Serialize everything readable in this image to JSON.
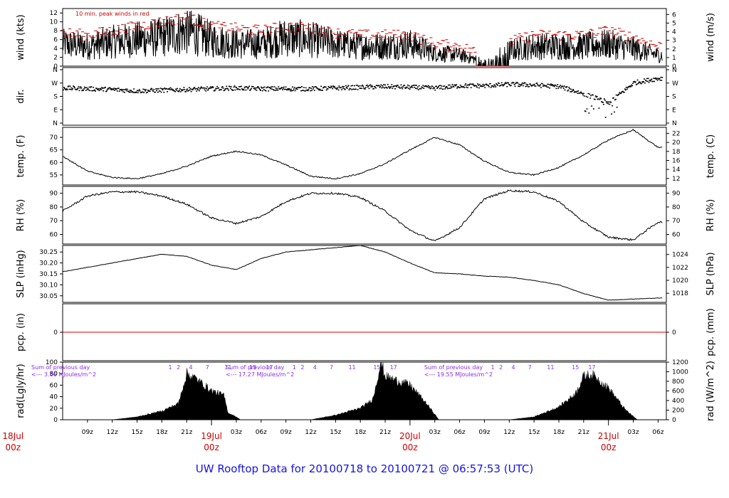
{
  "title": "UW Rooftop Data for 20100718  to  20100721 @ 06:57:53  (UTC)",
  "colors": {
    "data": "#000000",
    "peak": "#cc0000",
    "date": "#cc0000",
    "annotation": "#8a2be2",
    "title": "#1414e6",
    "zero_line": "#cc0000"
  },
  "time_axis": {
    "start": "2010-07-18 06:00Z",
    "end": "2010-07-21 07:00Z",
    "hour_ticks": [
      {
        "t": 3,
        "label": "09z"
      },
      {
        "t": 6,
        "label": "12z"
      },
      {
        "t": 9,
        "label": "15z"
      },
      {
        "t": 12,
        "label": "18z"
      },
      {
        "t": 15,
        "label": "21z"
      },
      {
        "t": 21,
        "label": "03z"
      },
      {
        "t": 24,
        "label": "06z"
      },
      {
        "t": 27,
        "label": "09z"
      },
      {
        "t": 30,
        "label": "12z"
      },
      {
        "t": 33,
        "label": "15z"
      },
      {
        "t": 36,
        "label": "18z"
      },
      {
        "t": 39,
        "label": "21z"
      },
      {
        "t": 45,
        "label": "03z"
      },
      {
        "t": 48,
        "label": "06z"
      },
      {
        "t": 51,
        "label": "09z"
      },
      {
        "t": 54,
        "label": "12z"
      },
      {
        "t": 57,
        "label": "15z"
      },
      {
        "t": 60,
        "label": "18z"
      },
      {
        "t": 63,
        "label": "21z"
      },
      {
        "t": 69,
        "label": "03z"
      },
      {
        "t": 72,
        "label": "06z"
      }
    ],
    "date_ticks": [
      {
        "t": -6,
        "date": "18Jul",
        "hour": "00z"
      },
      {
        "t": 18,
        "date": "19Jul",
        "hour": "00z"
      },
      {
        "t": 42,
        "date": "20Jul",
        "hour": "00z"
      },
      {
        "t": 66,
        "date": "21Jul",
        "hour": "00z"
      }
    ]
  },
  "chart_data": [
    {
      "type": "line",
      "id": "wind",
      "ylabel": "wind (kts)",
      "ylabel_right": "wind (m/s)",
      "ylim": [
        0,
        13
      ],
      "yticks": [
        0,
        2,
        4,
        6,
        8,
        10,
        12
      ],
      "yticks_right": [
        0,
        1,
        2,
        3,
        4,
        5,
        6
      ],
      "annotation": "10 min. peak winds in red",
      "x": [
        0,
        3,
        6,
        9,
        12,
        15,
        18,
        21,
        24,
        27,
        30,
        33,
        36,
        39,
        42,
        45,
        48,
        51,
        54,
        57,
        60,
        63,
        66,
        69,
        72
      ],
      "series": [
        {
          "values": [
            5.0,
            4.5,
            5.5,
            6.0,
            6.5,
            8.0,
            6.0,
            5.0,
            5.0,
            6.5,
            6.0,
            5.0,
            4.5,
            4.5,
            5.0,
            3.0,
            2.5,
            1.0,
            3.5,
            4.5,
            4.5,
            4.5,
            5.0,
            4.0,
            2.5
          ]
        },
        {
          "values": [
            7.5,
            7.0,
            8.0,
            9.0,
            10.0,
            11.0,
            9.0,
            8.5,
            8.0,
            9.0,
            8.5,
            7.5,
            7.0,
            7.0,
            7.0,
            5.0,
            4.5,
            2.5,
            5.5,
            7.0,
            7.0,
            7.0,
            8.0,
            6.5,
            4.5
          ]
        }
      ]
    },
    {
      "type": "scatter",
      "id": "direction",
      "ylabel": "dir.",
      "yticks": [
        "N",
        "E",
        "S",
        "W",
        "N"
      ],
      "yticks_right": [
        "N",
        "E",
        "S",
        "W",
        "N"
      ],
      "ylim": [
        0,
        360
      ],
      "x": [
        0,
        3,
        6,
        9,
        12,
        15,
        18,
        21,
        24,
        27,
        30,
        33,
        36,
        39,
        42,
        45,
        48,
        51,
        54,
        57,
        60,
        63,
        66,
        69,
        72
      ],
      "values": [
        240,
        235,
        230,
        220,
        225,
        230,
        235,
        240,
        235,
        235,
        235,
        240,
        245,
        250,
        245,
        240,
        255,
        255,
        265,
        260,
        250,
        200,
        140,
        275,
        305
      ]
    },
    {
      "type": "line",
      "id": "temperature",
      "ylabel": "temp. (F)",
      "ylabel_right": "temp. (C)",
      "ylim": [
        51,
        74
      ],
      "yticks": [
        55,
        60,
        65,
        70
      ],
      "yticks_right": [
        12,
        14,
        16,
        18,
        20,
        22
      ],
      "x": [
        0,
        3,
        6,
        9,
        12,
        15,
        18,
        21,
        24,
        27,
        30,
        33,
        36,
        39,
        42,
        45,
        48,
        51,
        54,
        57,
        60,
        63,
        66,
        69,
        72
      ],
      "values": [
        62.5,
        56.5,
        54.0,
        53.5,
        55.5,
        58.5,
        62.5,
        64.5,
        63.0,
        59.0,
        54.5,
        53.5,
        55.5,
        59.5,
        65.0,
        70.0,
        67.0,
        60.5,
        56.0,
        55.0,
        58.0,
        63.0,
        69.0,
        73.0,
        66.0
      ]
    },
    {
      "type": "line",
      "id": "rh",
      "ylabel": "RH (%)",
      "ylabel_right": "RH (%)",
      "ylim": [
        53,
        95
      ],
      "yticks": [
        60,
        70,
        80,
        90
      ],
      "yticks_right": [
        60,
        70,
        80,
        90
      ],
      "x": [
        0,
        3,
        6,
        9,
        12,
        15,
        18,
        21,
        24,
        27,
        30,
        33,
        36,
        39,
        42,
        45,
        48,
        51,
        54,
        57,
        60,
        63,
        66,
        69,
        72
      ],
      "values": [
        77,
        88,
        91,
        91,
        88,
        82,
        72,
        68,
        73,
        84,
        90,
        90,
        87,
        77,
        63,
        55,
        65,
        86,
        92,
        91,
        84,
        69,
        58,
        56,
        69
      ]
    },
    {
      "type": "line",
      "id": "slp",
      "ylabel": "SLP (inHg)",
      "ylabel_right": "SLP (hPa)",
      "ylim": [
        30.02,
        30.28
      ],
      "yticks": [
        30.05,
        30.1,
        30.15,
        30.2,
        30.25
      ],
      "yticks_right": [
        1018,
        1020,
        1022,
        1024
      ],
      "x": [
        0,
        3,
        6,
        9,
        12,
        15,
        18,
        21,
        24,
        27,
        30,
        33,
        36,
        39,
        42,
        45,
        48,
        51,
        54,
        57,
        60,
        63,
        66,
        69,
        72
      ],
      "values": [
        30.16,
        30.18,
        30.2,
        30.22,
        30.24,
        30.23,
        30.19,
        30.17,
        30.22,
        30.25,
        30.26,
        30.27,
        30.28,
        30.25,
        30.2,
        30.155,
        30.15,
        30.14,
        30.135,
        30.12,
        30.1,
        30.06,
        30.03,
        30.035,
        30.04
      ]
    },
    {
      "type": "line",
      "id": "precip",
      "ylabel": "pcp. (in)",
      "ylabel_right": "pcp. (mm)",
      "ylim": [
        -1,
        1
      ],
      "yticks": [
        0
      ],
      "yticks_right": [
        0
      ],
      "x": [
        0,
        72
      ],
      "values": [
        0,
        0
      ]
    },
    {
      "type": "area",
      "id": "radiation",
      "ylabel": "rad(Lgly/hr)",
      "ylabel_right": "rad (W/m^2)",
      "ylim": [
        0,
        100
      ],
      "yticks": [
        0,
        20,
        40,
        60,
        80,
        100
      ],
      "yticks_right": [
        0,
        200,
        400,
        600,
        800,
        1000,
        1200
      ],
      "x": [
        6,
        9,
        12,
        14,
        15,
        16,
        18,
        19.5,
        20,
        21,
        21.5,
        30,
        33,
        36,
        37.5,
        38.5,
        39,
        39.5,
        42,
        44,
        45.5,
        54,
        57,
        60,
        62,
        63,
        64,
        66,
        68,
        69.5
      ],
      "values": [
        0,
        5,
        15,
        28,
        80,
        72,
        50,
        42,
        12,
        5,
        0,
        0,
        8,
        20,
        35,
        100,
        75,
        72,
        60,
        28,
        0,
        0,
        5,
        22,
        45,
        75,
        78,
        55,
        18,
        0
      ],
      "annotations": [
        {
          "t": -6.5,
          "line1": "Sum of previous day",
          "line2": "<--- 3.66 MJoules/m^2"
        },
        {
          "t": 18,
          "line1": "Sum of previous day",
          "line2": "<--- 17.27 MJoules/m^2"
        },
        {
          "t": 42,
          "line1": "Sum of previous day",
          "line2": "<--- 19.55 MJoules/m^2"
        }
      ],
      "local_hours": [
        "1",
        "2",
        "4",
        "7",
        "11",
        "15",
        "17"
      ]
    }
  ]
}
